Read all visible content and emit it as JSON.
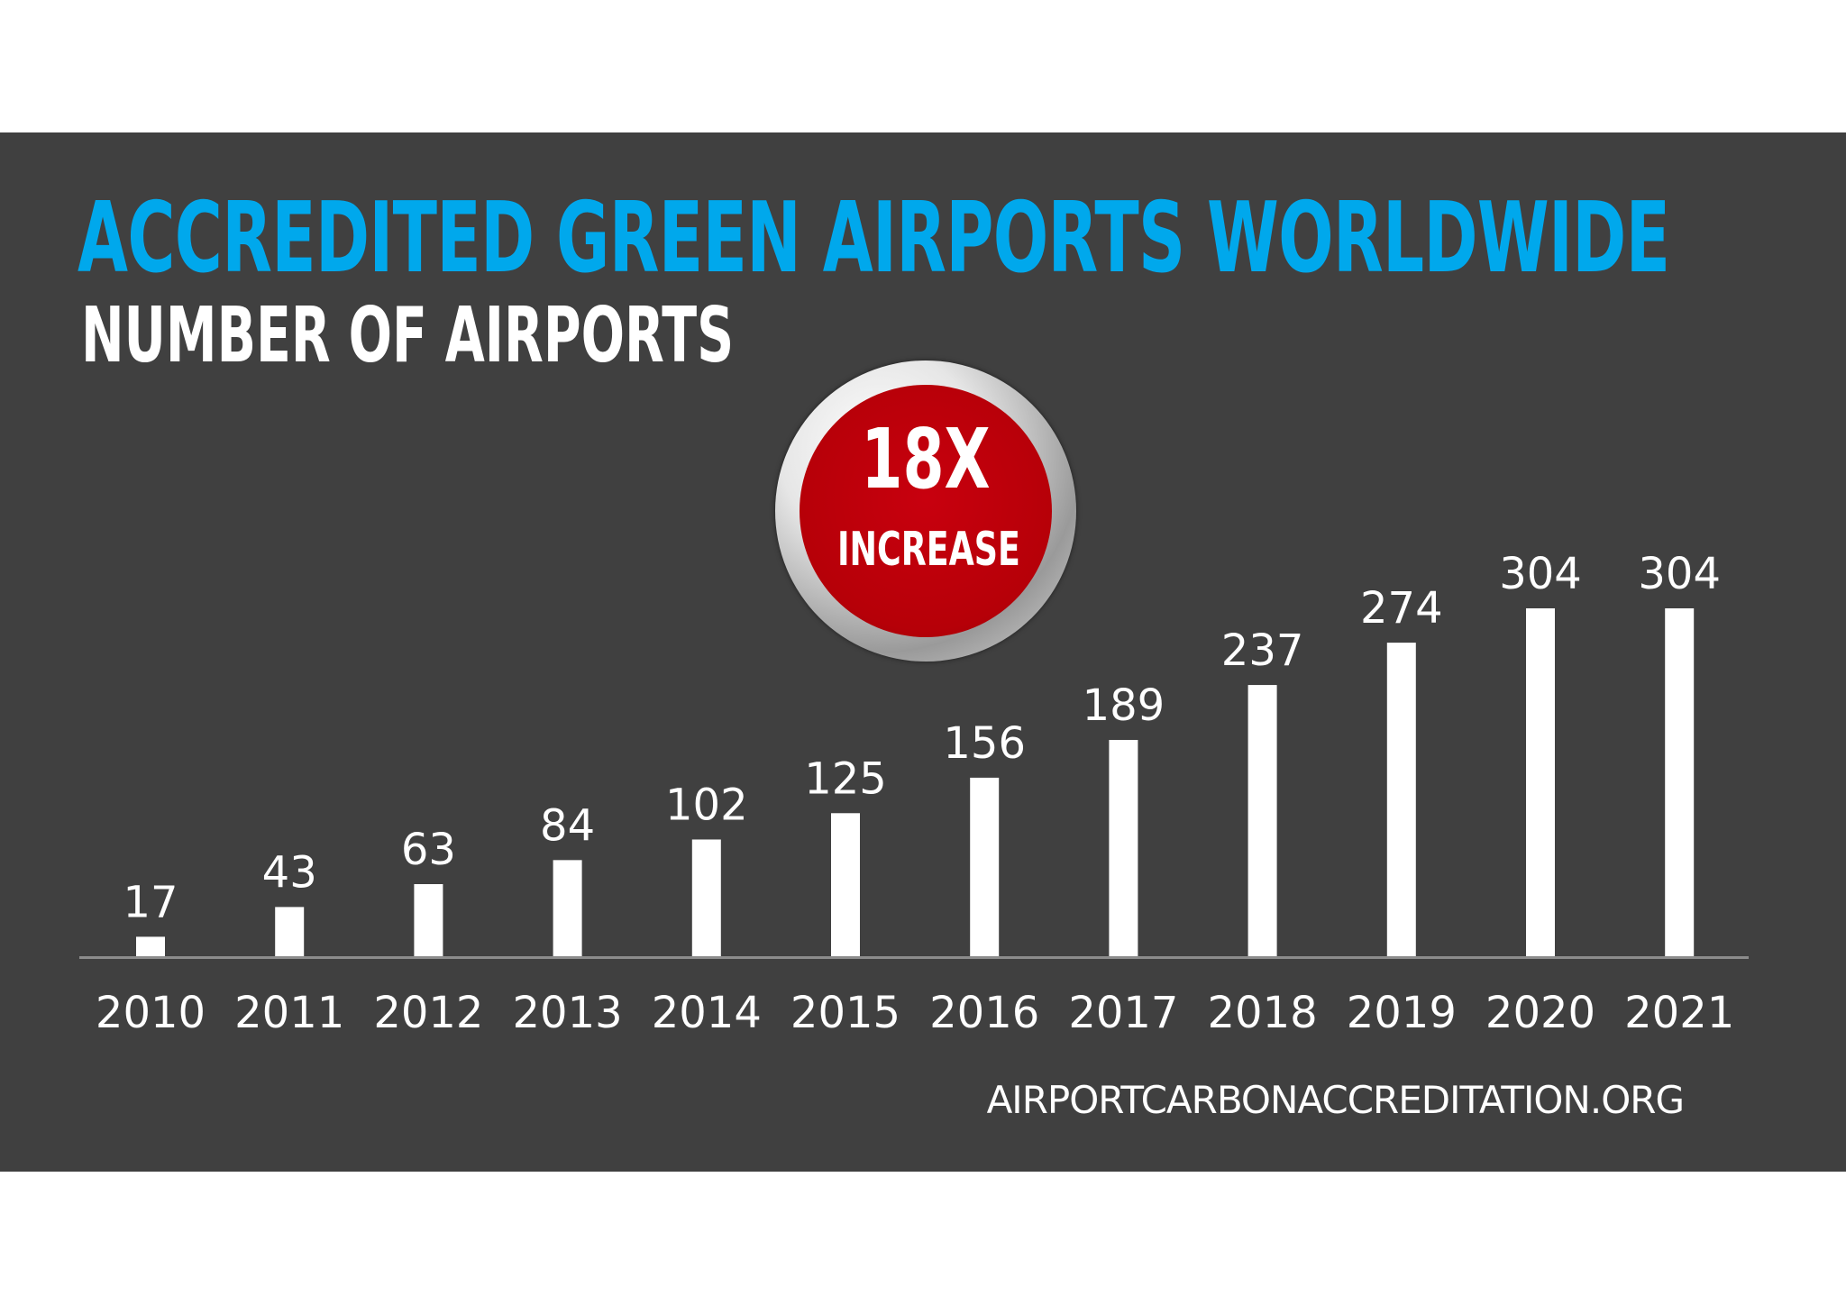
{
  "chart_data": {
    "type": "bar",
    "title": "ACCREDITED GREEN AIRPORTS WORLDWIDE",
    "subtitle": "NUMBER OF AIRPORTS",
    "categories": [
      "2010",
      "2011",
      "2012",
      "2013",
      "2014",
      "2015",
      "2016",
      "2017",
      "2018",
      "2019",
      "2020",
      "2021"
    ],
    "values": [
      17,
      43,
      63,
      84,
      102,
      125,
      156,
      189,
      237,
      274,
      304,
      304
    ],
    "data_labels": true,
    "xlabel": "",
    "ylabel": "",
    "ylim": [
      0,
      304
    ],
    "grid": false,
    "bar_color": "#ffffff",
    "annotation": {
      "big": "18X",
      "small": "INCREASE",
      "color": "#c00000"
    },
    "source": "AIRPORTCARBONACCREDITATION.ORG"
  },
  "colors": {
    "background": "#404040",
    "title": "#00a8ec",
    "text": "#ffffff"
  }
}
